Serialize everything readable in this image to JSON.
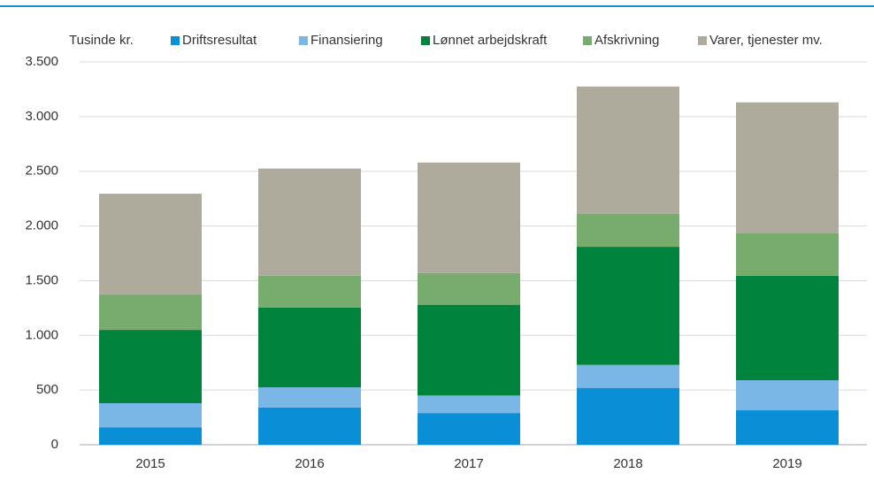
{
  "chart_data": {
    "type": "stacked_bar",
    "ylabel": "Tusinde kr.",
    "categories": [
      "2015",
      "2016",
      "2017",
      "2018",
      "2019"
    ],
    "series": [
      {
        "name": "Driftsresultat",
        "color": "#0a8fd6",
        "values": [
          160,
          340,
          290,
          520,
          315
        ]
      },
      {
        "name": "Finansiering",
        "color": "#7ab6e6",
        "values": [
          220,
          185,
          160,
          210,
          275
        ]
      },
      {
        "name": "Lønnet arbejdskraft",
        "color": "#00843d",
        "values": [
          670,
          730,
          830,
          1080,
          955
        ]
      },
      {
        "name": "Afskrivning",
        "color": "#78ab6e",
        "values": [
          325,
          290,
          290,
          300,
          390
        ]
      },
      {
        "name": "Varer, tjenester mv.",
        "color": "#aeab9c",
        "values": [
          920,
          980,
          1010,
          1165,
          1195
        ]
      }
    ],
    "ylim": [
      0,
      3500
    ],
    "yticks": [
      0,
      500,
      {
        "value": 1000,
        "label": "1.000"
      },
      {
        "value": 1500,
        "label": "1.500"
      },
      {
        "value": 2000,
        "label": "2.000"
      },
      {
        "value": 2500,
        "label": "2.500"
      },
      {
        "value": 3000,
        "label": "3.000"
      },
      {
        "value": 3500,
        "label": "3.500"
      }
    ],
    "grid": true,
    "legend": "top"
  }
}
